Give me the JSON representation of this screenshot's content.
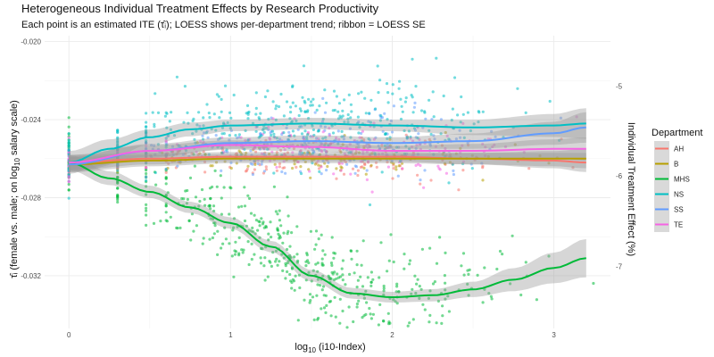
{
  "chart_data": {
    "type": "scatter",
    "title": "Heterogeneous Individual Treatment Effects by Research Productivity",
    "subtitle": "Each point is an estimated ITE (τ̂ᵢ); LOESS shows per-department trend; ribbon = LOESS SE",
    "xlabel_main": "log",
    "xlabel_sub": "10",
    "xlabel_rest": " (i10-Index)",
    "ylabel_main": "τ̂ᵢ (female vs. male; on log",
    "ylabel_sub": "10",
    "ylabel_rest": " salary scale)",
    "y2label": "Individual Treatment Effect (%)",
    "xlim": [
      -0.15,
      3.35
    ],
    "ylim": [
      -0.0347,
      -0.0197
    ],
    "x_ticks": [
      0,
      1,
      2,
      3
    ],
    "x_tick_labels": [
      "0",
      "1",
      "2",
      "3"
    ],
    "y_ticks": [
      -0.02,
      -0.024,
      -0.028,
      -0.032
    ],
    "y_tick_labels": [
      "-0.020",
      "-0.024",
      "-0.028",
      "-0.032"
    ],
    "y2_ticks": [
      -5,
      -6,
      -7
    ],
    "y2_tick_labels": [
      "-5",
      "-6",
      "-7"
    ],
    "y2_transform": "percent = (exp(y*ln(10)) - 1) * 100",
    "legend": {
      "title": "Department",
      "position": "right",
      "entries": [
        "AH",
        "B",
        "MHS",
        "NS",
        "SS",
        "TE"
      ]
    },
    "series": [
      {
        "name": "AH",
        "color": "#F8766D",
        "n_points": 180,
        "spread": 0.0005,
        "x": [
          0,
          0.5,
          1,
          1.5,
          2,
          2.5,
          3,
          3.2
        ],
        "y": [
          -0.0262,
          -0.026,
          -0.0259,
          -0.0259,
          -0.0259,
          -0.026,
          -0.0261,
          -0.0262
        ],
        "se": [
          0.0002,
          0.00015,
          0.00012,
          0.00012,
          0.00012,
          0.00015,
          0.0002,
          0.00025
        ]
      },
      {
        "name": "B",
        "color": "#B79F00",
        "n_points": 150,
        "spread": 0.0004,
        "x": [
          0,
          0.5,
          1,
          1.5,
          2,
          2.5,
          3,
          3.2
        ],
        "y": [
          -0.0263,
          -0.0261,
          -0.026,
          -0.026,
          -0.026,
          -0.026,
          -0.026,
          -0.026
        ],
        "se": [
          0.0002,
          0.00015,
          0.00012,
          0.00012,
          0.00012,
          0.00015,
          0.0002,
          0.00025
        ]
      },
      {
        "name": "MHS",
        "color": "#00BA38",
        "n_points": 520,
        "spread": 0.0012,
        "x": [
          0,
          0.25,
          0.5,
          0.75,
          1,
          1.25,
          1.5,
          1.75,
          2,
          2.25,
          2.5,
          2.75,
          3,
          3.2
        ],
        "y": [
          -0.0262,
          -0.027,
          -0.0277,
          -0.0285,
          -0.0293,
          -0.0305,
          -0.032,
          -0.0329,
          -0.0331,
          -0.033,
          -0.0327,
          -0.0322,
          -0.0316,
          -0.0311
        ],
        "se": [
          0.0002,
          0.00018,
          0.00016,
          0.00015,
          0.00015,
          0.00015,
          0.00015,
          0.00014,
          0.00014,
          0.00016,
          0.0002,
          0.0003,
          0.0004,
          0.0005
        ]
      },
      {
        "name": "NS",
        "color": "#00BFC4",
        "n_points": 400,
        "spread": 0.0011,
        "x": [
          0,
          0.25,
          0.5,
          0.75,
          1,
          1.5,
          2,
          2.5,
          3,
          3.2
        ],
        "y": [
          -0.0262,
          -0.0255,
          -0.0249,
          -0.0245,
          -0.0243,
          -0.0242,
          -0.0243,
          -0.0244,
          -0.0243,
          -0.0242
        ],
        "se": [
          0.0003,
          0.00025,
          0.0002,
          0.00018,
          0.00015,
          0.00015,
          0.00015,
          0.0002,
          0.0003,
          0.0004
        ]
      },
      {
        "name": "SS",
        "color": "#619CFF",
        "n_points": 250,
        "spread": 0.0007,
        "x": [
          0,
          0.5,
          1,
          1.5,
          2,
          2.5,
          3,
          3.2
        ],
        "y": [
          -0.0263,
          -0.0256,
          -0.0252,
          -0.0251,
          -0.0252,
          -0.0251,
          -0.0247,
          -0.0244
        ],
        "se": [
          0.0002,
          0.00018,
          0.00015,
          0.00015,
          0.00015,
          0.0002,
          0.0003,
          0.0004
        ]
      },
      {
        "name": "TE",
        "color": "#F564E3",
        "n_points": 220,
        "spread": 0.0006,
        "x": [
          0,
          0.5,
          1,
          1.5,
          2,
          2.5,
          3,
          3.2
        ],
        "y": [
          -0.0262,
          -0.0256,
          -0.0253,
          -0.0254,
          -0.0256,
          -0.0256,
          -0.0255,
          -0.0255
        ],
        "se": [
          0.0002,
          0.00015,
          0.00012,
          0.00012,
          0.00013,
          0.00018,
          0.00025,
          0.0003
        ]
      }
    ]
  }
}
